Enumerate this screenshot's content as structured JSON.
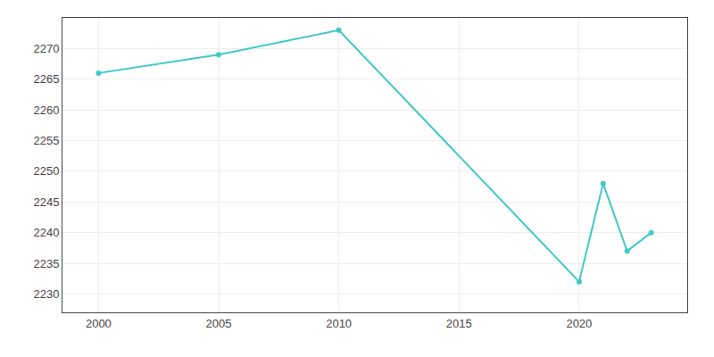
{
  "chart_data": {
    "type": "line",
    "x": [
      2000,
      2005,
      2010,
      2020,
      2021,
      2022,
      2023
    ],
    "values": [
      2266,
      2269,
      2273,
      2232,
      2248,
      2237,
      2240
    ],
    "color": "#3ec9c9",
    "marker": "circle",
    "xlim": [
      1998.5,
      2024.5
    ],
    "xticks": [
      2000,
      2005,
      2010,
      2015,
      2020
    ],
    "ylim": [
      2227,
      2275
    ],
    "yticks": [
      2230,
      2235,
      2240,
      2245,
      2250,
      2255,
      2260,
      2265,
      2270
    ],
    "grid": true
  }
}
